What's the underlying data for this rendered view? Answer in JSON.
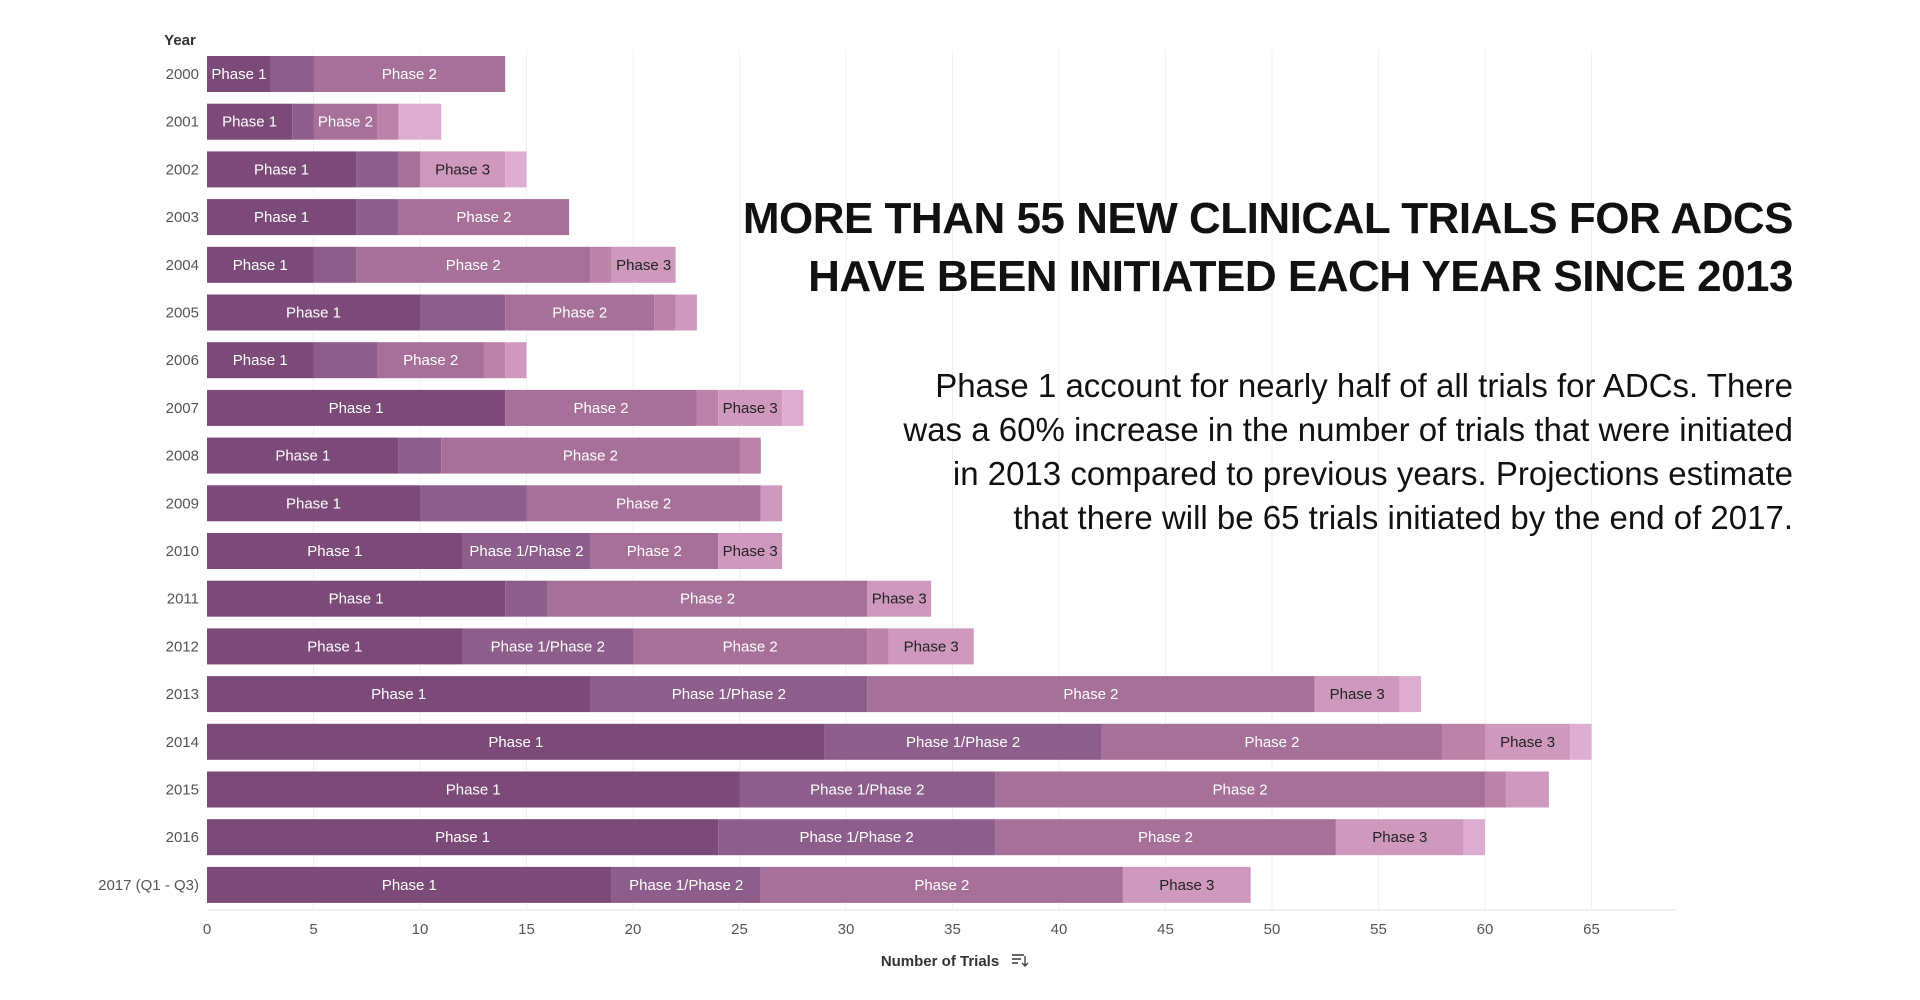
{
  "headline": "MORE THAN 55 NEW CLINICAL TRIALS FOR ADCS HAVE BEEN INITIATED EACH YEAR SINCE 2013",
  "description": "Phase 1 account for nearly half of all trials for ADCs. There was a 60% increase in the number of trials that were initiated in 2013 compared to previous years. Projections estimate that there will be 65 trials initiated by the end of 2017.",
  "chart_data": {
    "type": "bar",
    "orientation": "horizontal-stacked",
    "ylabel": "Year",
    "xlabel": "Number of Trials",
    "sort_icon": "sort-descending-icon",
    "xlim": [
      0,
      69
    ],
    "xticks": [
      0,
      5,
      10,
      15,
      20,
      25,
      30,
      35,
      40,
      45,
      50,
      55,
      60,
      65
    ],
    "grid": true,
    "categories": [
      "2000",
      "2001",
      "2002",
      "2003",
      "2004",
      "2005",
      "2006",
      "2007",
      "2008",
      "2009",
      "2010",
      "2011",
      "2012",
      "2013",
      "2014",
      "2015",
      "2016",
      "2017 (Q1 - Q3)"
    ],
    "series": [
      {
        "name": "Phase 1",
        "color": "#7c4a78",
        "values": [
          3,
          4,
          7,
          7,
          5,
          10,
          5,
          14,
          9,
          10,
          12,
          14,
          12,
          18,
          29,
          25,
          24,
          19
        ]
      },
      {
        "name": "Phase 1/Phase 2",
        "color": "#8d5e8b",
        "values": [
          2,
          1,
          2,
          2,
          2,
          4,
          3,
          0,
          2,
          5,
          6,
          2,
          8,
          13,
          13,
          12,
          13,
          7
        ]
      },
      {
        "name": "Phase 2",
        "color": "#a67098",
        "values": [
          9,
          3,
          1,
          8,
          11,
          7,
          5,
          9,
          14,
          11,
          6,
          15,
          11,
          21,
          16,
          23,
          16,
          17
        ]
      },
      {
        "name": "",
        "color": "#bd82a8",
        "values": [
          0,
          1,
          0,
          0,
          1,
          1,
          1,
          1,
          1,
          0,
          0,
          0,
          1,
          0,
          2,
          1,
          0,
          0
        ]
      },
      {
        "name": "Phase 3",
        "color": "#cf98bd",
        "values": [
          0,
          0,
          4,
          0,
          3,
          1,
          1,
          3,
          0,
          1,
          3,
          3,
          4,
          4,
          4,
          2,
          6,
          6
        ]
      },
      {
        "name": "",
        "color": "#deaed2",
        "values": [
          0,
          2,
          1,
          0,
          0,
          0,
          0,
          1,
          0,
          0,
          0,
          0,
          0,
          1,
          1,
          0,
          1,
          0
        ]
      }
    ]
  }
}
